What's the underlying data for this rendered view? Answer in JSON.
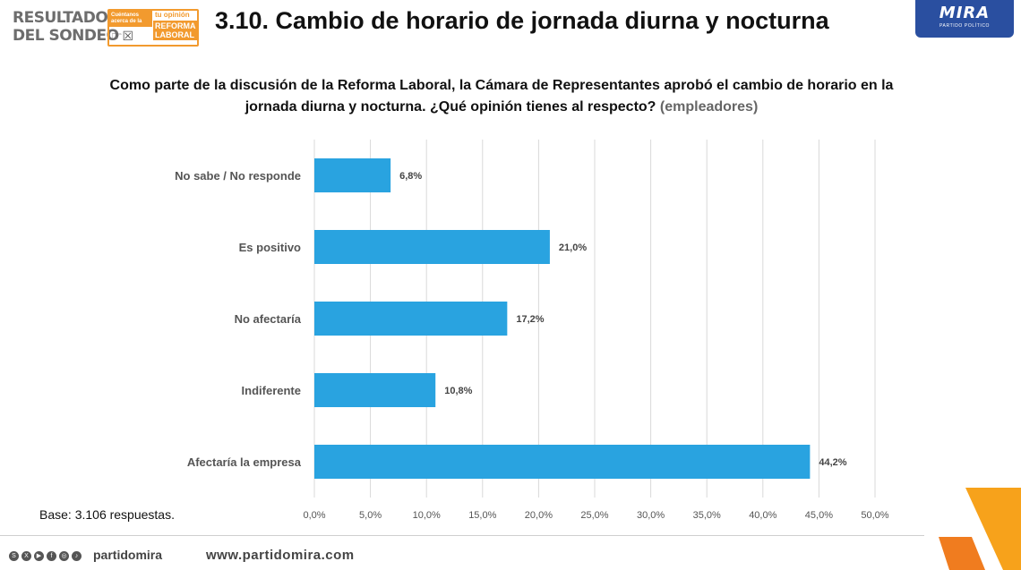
{
  "header": {
    "results_line1": "RESULTADOS",
    "results_line2": "DEL SONDEO",
    "badge_small": "Cuéntanos acerca de la",
    "badge_top": "tu opinión",
    "badge_line1": "REFORMA",
    "badge_line2": "LABORAL",
    "title": "3.10. Cambio de horario de jornada diurna y nocturna",
    "brand": "MIRA",
    "brand_sub": "PARTIDO POLÍTICO"
  },
  "question": {
    "text": "Como parte de la discusión de la Reforma Laboral, la Cámara de Representantes aprobó el cambio de horario en la jornada diurna y nocturna. ¿Qué opinión tienes al respecto?",
    "qualifier": "(empleadores)"
  },
  "chart_data": {
    "type": "bar",
    "orientation": "horizontal",
    "categories": [
      "No sabe / No responde",
      "Es positivo",
      "No afectaría",
      "Indiferente",
      "Afectaría la empresa"
    ],
    "values": [
      6.8,
      21.0,
      17.2,
      10.8,
      44.2
    ],
    "data_labels": [
      "6,8%",
      "21,0%",
      "17,2%",
      "10,8%",
      "44,2%"
    ],
    "xlim": [
      0,
      50
    ],
    "xticks": [
      "0,0%",
      "5,0%",
      "10,0%",
      "15,0%",
      "20,0%",
      "25,0%",
      "30,0%",
      "35,0%",
      "40,0%",
      "45,0%",
      "50,0%"
    ],
    "grid": true,
    "bar_color": "#29a3e0"
  },
  "base_note": "Base: 3.106 respuestas.",
  "footer": {
    "handle": "partidomira",
    "website": "www.partidomira.com",
    "social_icons": [
      "spotify-icon",
      "x-icon",
      "youtube-icon",
      "facebook-icon",
      "instagram-icon",
      "tiktok-icon"
    ]
  },
  "colors": {
    "accent": "#f29a2e",
    "brand": "#2a4fa0",
    "bar": "#29a3e0"
  }
}
